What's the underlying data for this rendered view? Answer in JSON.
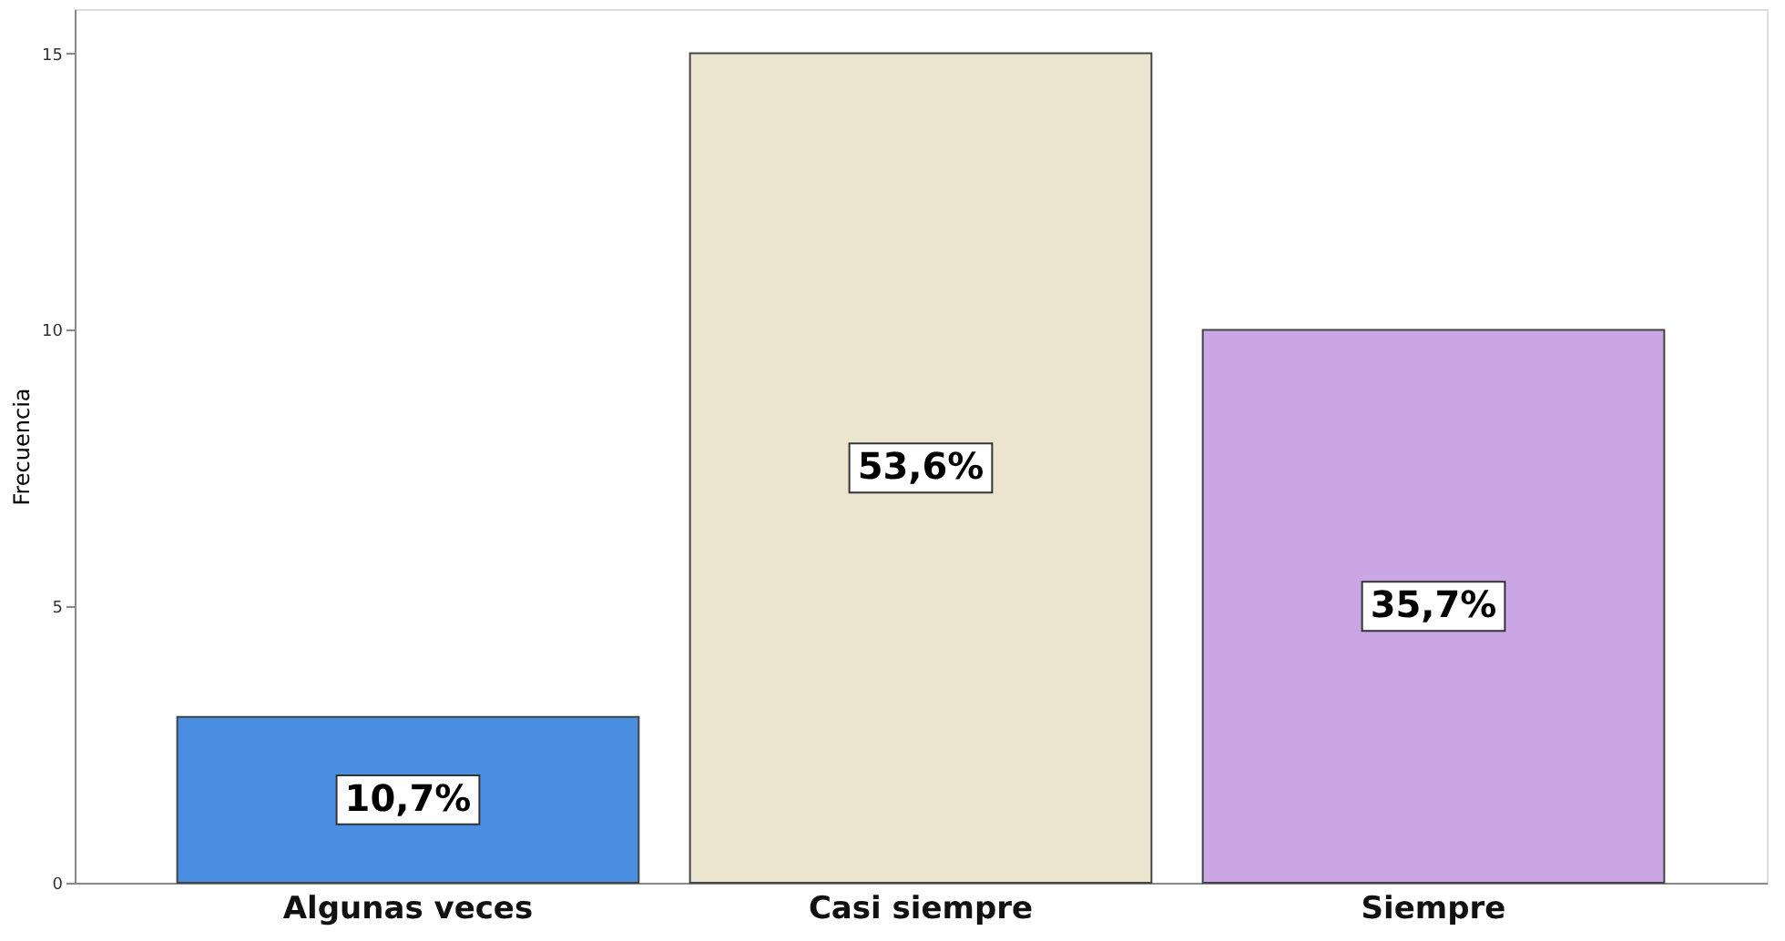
{
  "chart_data": {
    "type": "bar",
    "ylabel": "Frecuencia",
    "categories": [
      "Algunas veces",
      "Casi siempre",
      "Siempre"
    ],
    "values": [
      3,
      15,
      10
    ],
    "colors": [
      "#4a8fe2",
      "#ebe5d0",
      "#caa6e4"
    ],
    "annotations": [
      "10,7%",
      "53,6%",
      "35,7%"
    ],
    "ylim": [
      0,
      15.8
    ],
    "yticks": [
      0,
      5,
      10,
      15
    ],
    "grid": false
  }
}
